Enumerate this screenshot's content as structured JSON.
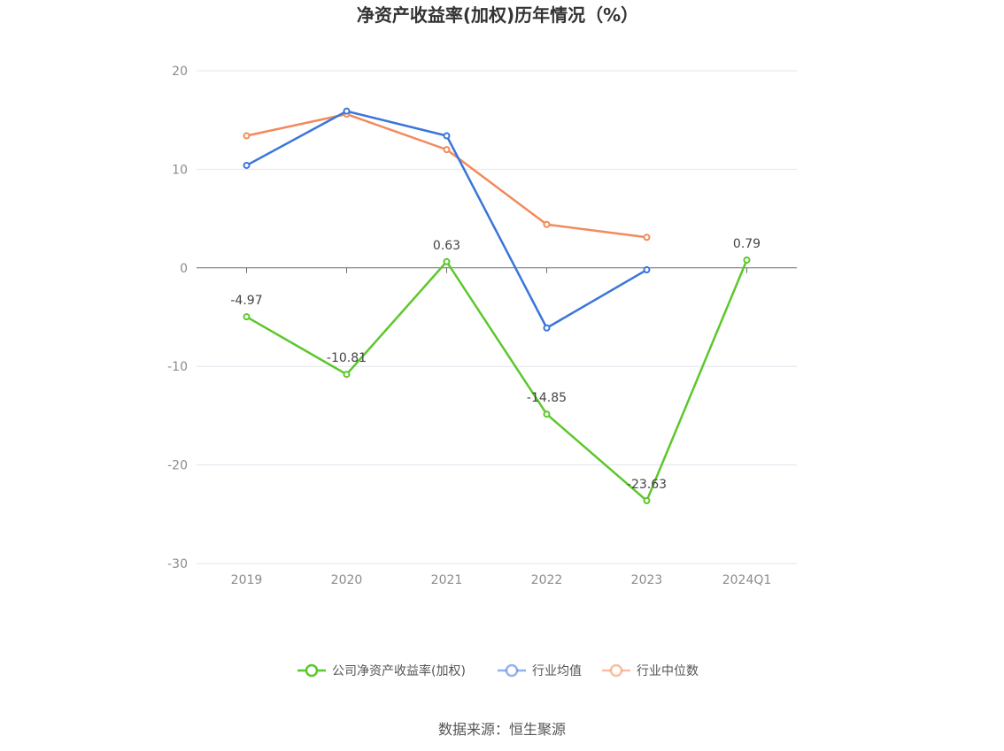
{
  "chart_data": {
    "type": "line",
    "title": "净资产收益率(加权)历年情况（%）",
    "categories": [
      "2019",
      "2020",
      "2021",
      "2022",
      "2023",
      "2024Q1"
    ],
    "ylim": [
      -30,
      20
    ],
    "yticks": [
      20,
      10,
      0,
      -10,
      -20,
      -30
    ],
    "grid": true,
    "legend_position": "bottom",
    "series": [
      {
        "name": "公司净资产收益率(加权)",
        "color": "#5cc72c",
        "values": [
          -4.97,
          -10.81,
          0.63,
          -14.85,
          -23.63,
          0.79
        ],
        "labels": [
          "-4.97",
          "-10.81",
          "0.63",
          "-14.85",
          "-23.63",
          "0.79"
        ]
      },
      {
        "name": "行业均值",
        "color": "#3a75d9",
        "values": [
          10.4,
          15.9,
          13.4,
          -6.1,
          -0.2,
          null
        ]
      },
      {
        "name": "行业中位数",
        "color": "#f28a5b",
        "values": [
          13.4,
          15.6,
          12.0,
          4.4,
          3.1,
          null
        ]
      }
    ]
  },
  "source": "数据来源：恒生聚源"
}
